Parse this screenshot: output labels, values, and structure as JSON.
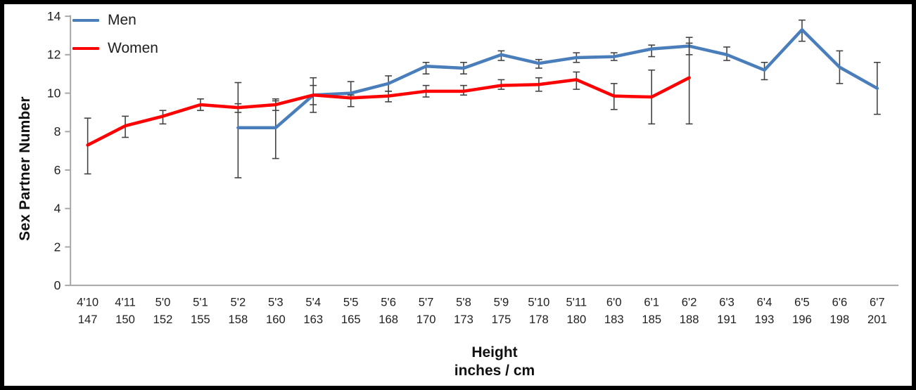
{
  "figure": {
    "background": "#ffffff",
    "border_color": "#000000"
  },
  "chart_data": {
    "type": "line",
    "title": "",
    "ylabel": "Sex Partner Number",
    "xlabel": "Height",
    "xlabel_sub": "inches / cm",
    "ylim": [
      0,
      14
    ],
    "yticks": [
      0,
      2,
      4,
      6,
      8,
      10,
      12,
      14
    ],
    "grid": false,
    "legend_position": "top-left",
    "error_bars": true,
    "categories_inches": [
      "4'10",
      "4'11",
      "5'0",
      "5'1",
      "5'2",
      "5'3",
      "5'4",
      "5'5",
      "5'6",
      "5'7",
      "5'8",
      "5'9",
      "5'10",
      "5'11",
      "6'0",
      "6'1",
      "6'2",
      "6'3",
      "6'4",
      "6'5",
      "6'6",
      "6'7"
    ],
    "categories_cm": [
      "147",
      "150",
      "152",
      "155",
      "158",
      "160",
      "163",
      "165",
      "168",
      "170",
      "173",
      "175",
      "178",
      "180",
      "183",
      "185",
      "188",
      "191",
      "193",
      "196",
      "198",
      "201"
    ],
    "series": [
      {
        "name": "Men",
        "color": "#4a7ebb",
        "start_index": 4,
        "values": [
          8.2,
          8.2,
          9.9,
          10.0,
          10.5,
          11.4,
          11.3,
          12.0,
          11.55,
          11.85,
          11.9,
          12.3,
          12.45,
          12.0,
          11.2,
          13.3,
          11.35,
          10.25
        ],
        "err_low": [
          5.6,
          6.6,
          9.0,
          9.8,
          10.1,
          11.0,
          11.0,
          11.7,
          11.3,
          11.6,
          11.7,
          11.9,
          12.0,
          11.7,
          10.7,
          12.7,
          10.5,
          8.9
        ],
        "err_high": [
          10.55,
          9.7,
          10.8,
          10.6,
          10.9,
          11.6,
          11.6,
          12.2,
          11.75,
          12.1,
          12.1,
          12.5,
          12.9,
          12.4,
          11.6,
          13.8,
          12.2,
          11.6
        ]
      },
      {
        "name": "Women",
        "color": "#fe0000",
        "start_index": 0,
        "values": [
          7.3,
          8.3,
          8.8,
          9.4,
          9.25,
          9.4,
          9.9,
          9.75,
          9.85,
          10.1,
          10.1,
          10.4,
          10.45,
          10.7,
          9.85,
          9.8,
          10.8
        ],
        "err_low": [
          5.8,
          7.7,
          8.4,
          9.1,
          9.0,
          9.1,
          9.4,
          9.3,
          9.55,
          9.8,
          9.9,
          10.2,
          10.1,
          10.2,
          9.15,
          8.4,
          8.4
        ],
        "err_high": [
          8.7,
          8.8,
          9.1,
          9.7,
          9.45,
          9.6,
          10.4,
          9.9,
          10.1,
          10.4,
          10.4,
          10.7,
          10.8,
          11.1,
          10.5,
          11.2,
          12.6
        ]
      }
    ],
    "error_bar_color": "#404040",
    "axis_color": "#a6a6a6",
    "text_color": "#1f1f1f"
  }
}
